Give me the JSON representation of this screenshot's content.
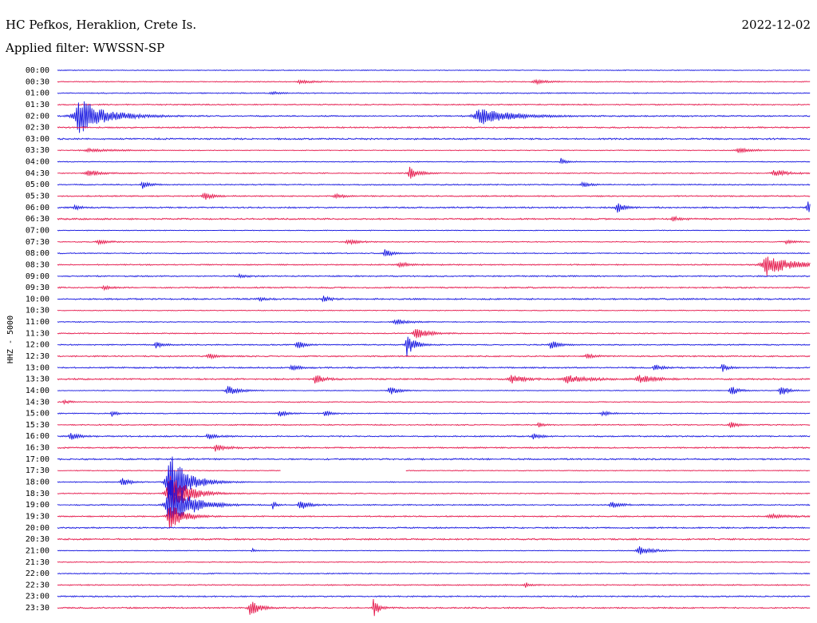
{
  "header": {
    "station": "HC Pefkos, Heraklion, Crete Is.",
    "date": "2022-12-02",
    "filter": "Applied filter: WWSSN-SP"
  },
  "axis_label": "HHZ - 5000",
  "time_labels": [
    "00:00",
    "00:30",
    "01:00",
    "01:30",
    "02:00",
    "02:30",
    "03:00",
    "03:30",
    "04:00",
    "04:30",
    "05:00",
    "05:30",
    "06:00",
    "06:30",
    "07:00",
    "07:30",
    "08:00",
    "08:30",
    "09:00",
    "09:30",
    "10:00",
    "10:30",
    "11:00",
    "11:30",
    "12:00",
    "12:30",
    "13:00",
    "13:30",
    "14:00",
    "14:30",
    "15:00",
    "15:30",
    "16:00",
    "16:30",
    "17:00",
    "17:30",
    "18:00",
    "18:30",
    "19:00",
    "19:30",
    "20:00",
    "20:30",
    "21:00",
    "21:30",
    "22:00",
    "22:30",
    "23:00",
    "23:30"
  ]
}
